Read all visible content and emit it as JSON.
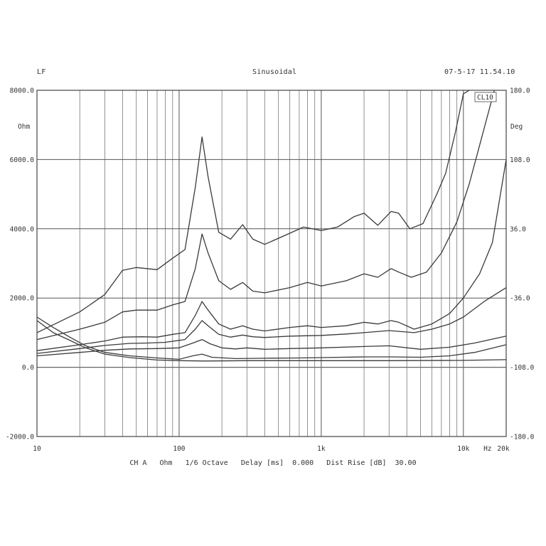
{
  "header": {
    "left": "LF",
    "center": "Sinusoidal",
    "right": "07-5-17 11.54.10"
  },
  "chart_data": {
    "type": "line",
    "x_scale": "log",
    "xlim": [
      10,
      20000
    ],
    "x_tick_labels": [
      {
        "value": 10,
        "label": "10"
      },
      {
        "value": 100,
        "label": "100"
      },
      {
        "value": 1000,
        "label": "1k"
      },
      {
        "value": 10000,
        "label": "10k"
      },
      {
        "value": 20000,
        "label": "20k"
      }
    ],
    "x_unit_label": "Hz",
    "left_axis": {
      "unit_label": "Ohm",
      "ylim": [
        -2000,
        8000
      ],
      "ticks": [
        8000,
        6000,
        4000,
        2000,
        0,
        -2000
      ],
      "tick_labels": [
        "8000.0",
        "6000.0",
        "4000.0",
        "2000.0",
        "0.0",
        "-2000.0"
      ]
    },
    "right_axis": {
      "unit_label": "Deg",
      "ylim": [
        -180,
        180
      ],
      "ticks": [
        180,
        108,
        36,
        -36,
        -108,
        -180
      ],
      "tick_labels": [
        "180.0",
        "108.0",
        "36.0",
        "-36.0",
        "-108.0",
        "-180.0"
      ]
    },
    "legend_box": "CL10",
    "grid": true,
    "series": [
      {
        "points": [
          [
            10,
            1000
          ],
          [
            20,
            1600
          ],
          [
            30,
            2100
          ],
          [
            40,
            2800
          ],
          [
            50,
            2880
          ],
          [
            70,
            2820
          ],
          [
            90,
            3150
          ],
          [
            110,
            3400
          ],
          [
            130,
            5200
          ],
          [
            145,
            6650
          ],
          [
            160,
            5500
          ],
          [
            190,
            3900
          ],
          [
            230,
            3700
          ],
          [
            280,
            4120
          ],
          [
            330,
            3700
          ],
          [
            400,
            3550
          ],
          [
            550,
            3800
          ],
          [
            750,
            4050
          ],
          [
            1000,
            3950
          ],
          [
            1300,
            4050
          ],
          [
            1700,
            4350
          ],
          [
            2000,
            4450
          ],
          [
            2500,
            4100
          ],
          [
            3100,
            4500
          ],
          [
            3500,
            4450
          ],
          [
            4200,
            4000
          ],
          [
            5200,
            4150
          ],
          [
            6500,
            5000
          ],
          [
            7500,
            5600
          ],
          [
            8800,
            6800
          ],
          [
            10000,
            7900
          ],
          [
            11000,
            8000
          ]
        ]
      },
      {
        "points": [
          [
            10,
            800
          ],
          [
            20,
            1100
          ],
          [
            30,
            1300
          ],
          [
            40,
            1600
          ],
          [
            50,
            1650
          ],
          [
            70,
            1650
          ],
          [
            90,
            1800
          ],
          [
            110,
            1900
          ],
          [
            130,
            2850
          ],
          [
            145,
            3850
          ],
          [
            160,
            3300
          ],
          [
            190,
            2500
          ],
          [
            230,
            2250
          ],
          [
            280,
            2450
          ],
          [
            330,
            2200
          ],
          [
            400,
            2150
          ],
          [
            600,
            2300
          ],
          [
            800,
            2450
          ],
          [
            1000,
            2350
          ],
          [
            1500,
            2500
          ],
          [
            2000,
            2700
          ],
          [
            2500,
            2600
          ],
          [
            3100,
            2850
          ],
          [
            3500,
            2750
          ],
          [
            4300,
            2600
          ],
          [
            5500,
            2750
          ],
          [
            7000,
            3300
          ],
          [
            9000,
            4200
          ],
          [
            11000,
            5300
          ],
          [
            14000,
            6900
          ],
          [
            16500,
            8000
          ]
        ]
      },
      {
        "points": [
          [
            10,
            480
          ],
          [
            20,
            650
          ],
          [
            30,
            760
          ],
          [
            40,
            870
          ],
          [
            55,
            880
          ],
          [
            70,
            870
          ],
          [
            90,
            950
          ],
          [
            110,
            1000
          ],
          [
            130,
            1500
          ],
          [
            145,
            1900
          ],
          [
            160,
            1650
          ],
          [
            190,
            1250
          ],
          [
            230,
            1100
          ],
          [
            280,
            1200
          ],
          [
            330,
            1100
          ],
          [
            400,
            1050
          ],
          [
            600,
            1150
          ],
          [
            800,
            1200
          ],
          [
            1000,
            1150
          ],
          [
            1500,
            1200
          ],
          [
            2000,
            1300
          ],
          [
            2500,
            1250
          ],
          [
            3100,
            1350
          ],
          [
            3500,
            1300
          ],
          [
            4500,
            1100
          ],
          [
            6000,
            1250
          ],
          [
            8000,
            1550
          ],
          [
            10000,
            2000
          ],
          [
            13000,
            2700
          ],
          [
            16000,
            3600
          ],
          [
            20000,
            6000
          ]
        ]
      },
      {
        "points": [
          [
            10,
            400
          ],
          [
            20,
            540
          ],
          [
            30,
            630
          ],
          [
            45,
            690
          ],
          [
            60,
            700
          ],
          [
            80,
            720
          ],
          [
            110,
            800
          ],
          [
            130,
            1100
          ],
          [
            145,
            1350
          ],
          [
            160,
            1200
          ],
          [
            190,
            950
          ],
          [
            230,
            870
          ],
          [
            280,
            930
          ],
          [
            330,
            880
          ],
          [
            400,
            860
          ],
          [
            600,
            900
          ],
          [
            1000,
            920
          ],
          [
            1500,
            960
          ],
          [
            2000,
            1000
          ],
          [
            3000,
            1060
          ],
          [
            4500,
            1000
          ],
          [
            6000,
            1100
          ],
          [
            8000,
            1250
          ],
          [
            10000,
            1450
          ],
          [
            14000,
            1900
          ],
          [
            20000,
            2300
          ]
        ]
      },
      {
        "points": [
          [
            10,
            330
          ],
          [
            20,
            430
          ],
          [
            30,
            490
          ],
          [
            45,
            530
          ],
          [
            70,
            540
          ],
          [
            100,
            560
          ],
          [
            125,
            700
          ],
          [
            145,
            800
          ],
          [
            165,
            680
          ],
          [
            200,
            560
          ],
          [
            250,
            530
          ],
          [
            300,
            560
          ],
          [
            400,
            520
          ],
          [
            600,
            540
          ],
          [
            1000,
            560
          ],
          [
            2000,
            600
          ],
          [
            3000,
            620
          ],
          [
            5000,
            520
          ],
          [
            8000,
            580
          ],
          [
            12000,
            700
          ],
          [
            20000,
            900
          ]
        ]
      },
      {
        "points": [
          [
            10,
            1450
          ],
          [
            13,
            1150
          ],
          [
            17,
            870
          ],
          [
            22,
            620
          ],
          [
            30,
            430
          ],
          [
            45,
            330
          ],
          [
            70,
            270
          ],
          [
            100,
            230
          ],
          [
            125,
            330
          ],
          [
            145,
            380
          ],
          [
            170,
            290
          ],
          [
            250,
            250
          ],
          [
            400,
            260
          ],
          [
            700,
            270
          ],
          [
            1000,
            280
          ],
          [
            2000,
            300
          ],
          [
            3000,
            300
          ],
          [
            5000,
            290
          ],
          [
            8000,
            330
          ],
          [
            12000,
            430
          ],
          [
            20000,
            650
          ]
        ]
      },
      {
        "points": [
          [
            10,
            1350
          ],
          [
            13,
            1000
          ],
          [
            17,
            780
          ],
          [
            22,
            560
          ],
          [
            30,
            380
          ],
          [
            45,
            280
          ],
          [
            70,
            210
          ],
          [
            100,
            190
          ],
          [
            150,
            180
          ],
          [
            300,
            190
          ],
          [
            1000,
            190
          ],
          [
            3000,
            190
          ],
          [
            10000,
            200
          ],
          [
            20000,
            220
          ]
        ]
      }
    ]
  },
  "footer": {
    "channel": "CH A",
    "unit": "Ohm",
    "smoothing": "1/6 Octave",
    "delay_label": "Delay [ms]",
    "delay_value": "0.000",
    "dist_label": "Dist Rise [dB]",
    "dist_value": "30.00"
  }
}
